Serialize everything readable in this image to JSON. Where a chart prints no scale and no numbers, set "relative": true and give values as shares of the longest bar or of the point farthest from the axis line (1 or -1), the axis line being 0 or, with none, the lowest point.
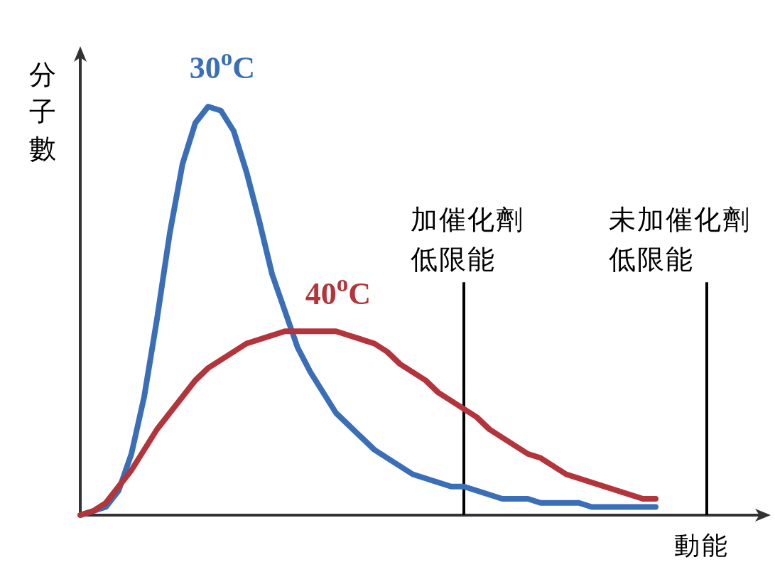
{
  "chart_data": {
    "type": "line",
    "relative": true,
    "xlabel": "動能",
    "ylabel": "分子數",
    "tick_labels": false,
    "grid": false,
    "legend": false,
    "marker": "none",
    "line_style": "solid",
    "categories": [
      null,
      null,
      null,
      null,
      null,
      null,
      null,
      null,
      null,
      null,
      null,
      null,
      null,
      null,
      null,
      null,
      null,
      null,
      null,
      null,
      null,
      null,
      null,
      null,
      null,
      null,
      null,
      null,
      null,
      null,
      null,
      null,
      null,
      null,
      null,
      null,
      null,
      null,
      null,
      null,
      null,
      null,
      null,
      null,
      null,
      null,
      null,
      null,
      null,
      null,
      null,
      null,
      null,
      null,
      null
    ],
    "series": [
      {
        "name": "30$^{o}$C",
        "color": "#3a6fb8",
        "values": [
          0,
          0.01,
          0.02,
          0.06,
          0.15,
          0.29,
          0.48,
          0.69,
          0.86,
          0.96,
          1,
          0.99,
          0.94,
          0.84,
          0.72,
          0.59,
          0.5,
          0.41,
          0.35,
          0.3,
          0.25,
          0.22,
          0.19,
          0.16,
          0.14,
          0.12,
          0.1,
          0.09,
          0.08,
          0.07,
          0.07,
          0.06,
          0.05,
          0.04,
          0.04,
          0.04,
          0.03,
          0.03,
          0.03,
          0.03,
          0.02,
          0.02,
          0.02,
          0.02,
          0.02,
          0.02,
          null,
          null,
          null,
          null,
          null,
          null,
          null,
          null,
          null
        ]
      },
      {
        "name": "40$^{o}$C",
        "color": "#b3343a",
        "values": [
          0,
          0.01,
          0.03,
          0.07,
          0.11,
          0.16,
          0.21,
          0.25,
          0.29,
          0.33,
          0.36,
          0.38,
          0.4,
          0.42,
          0.43,
          0.44,
          0.45,
          0.45,
          0.45,
          0.45,
          0.45,
          0.44,
          0.43,
          0.42,
          0.4,
          0.37,
          0.35,
          0.33,
          0.3,
          0.28,
          0.26,
          0.24,
          0.21,
          0.19,
          0.17,
          0.15,
          0.14,
          0.12,
          0.1,
          0.09,
          0.08,
          0.07,
          0.06,
          0.05,
          0.04,
          0.04,
          null,
          null,
          null,
          null,
          null,
          null,
          null,
          null,
          null
        ]
      }
    ],
    "annotations": [
      "加催化劑低限能",
      "未加催化劑低限能"
    ]
  }
}
